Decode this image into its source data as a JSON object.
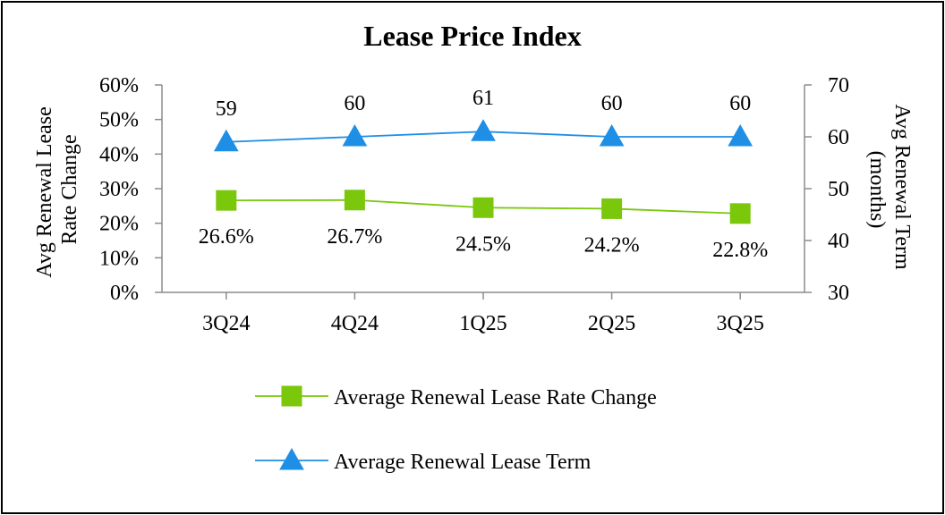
{
  "chart_data": {
    "type": "line",
    "title": "Lease Price Index",
    "categories": [
      "3Q24",
      "4Q24",
      "1Q25",
      "2Q25",
      "3Q25"
    ],
    "left_axis": {
      "label": "Avg Renewal Lease Rate Change",
      "label_lines": [
        "Avg Renewal Lease",
        "Rate Change"
      ],
      "range": [
        0,
        60
      ],
      "ticks": [
        0,
        10,
        20,
        30,
        40,
        50,
        60
      ],
      "tick_labels": [
        "0%",
        "10%",
        "20%",
        "30%",
        "40%",
        "50%",
        "60%"
      ]
    },
    "right_axis": {
      "label": "Avg Renewal Term (months)",
      "label_lines": [
        "Avg Renewal Term",
        "(months)"
      ],
      "range": [
        30,
        70
      ],
      "ticks": [
        30,
        40,
        50,
        60,
        70
      ],
      "tick_labels": [
        "30",
        "40",
        "50",
        "60",
        "70"
      ]
    },
    "series": [
      {
        "name": "Average Renewal Lease Rate Change",
        "axis": "left",
        "marker": "square",
        "color": "#7ac70c",
        "values": [
          26.6,
          26.7,
          24.5,
          24.2,
          22.8
        ],
        "data_labels": [
          "26.6%",
          "26.7%",
          "24.5%",
          "24.2%",
          "22.8%"
        ],
        "label_position": "below"
      },
      {
        "name": "Average Renewal Lease Term",
        "axis": "right",
        "marker": "triangle",
        "color": "#1f8fe6",
        "values": [
          59,
          60,
          61,
          60,
          60
        ],
        "data_labels": [
          "59",
          "60",
          "61",
          "60",
          "60"
        ],
        "label_position": "above"
      }
    ],
    "grid": false,
    "legend_position": "bottom"
  }
}
